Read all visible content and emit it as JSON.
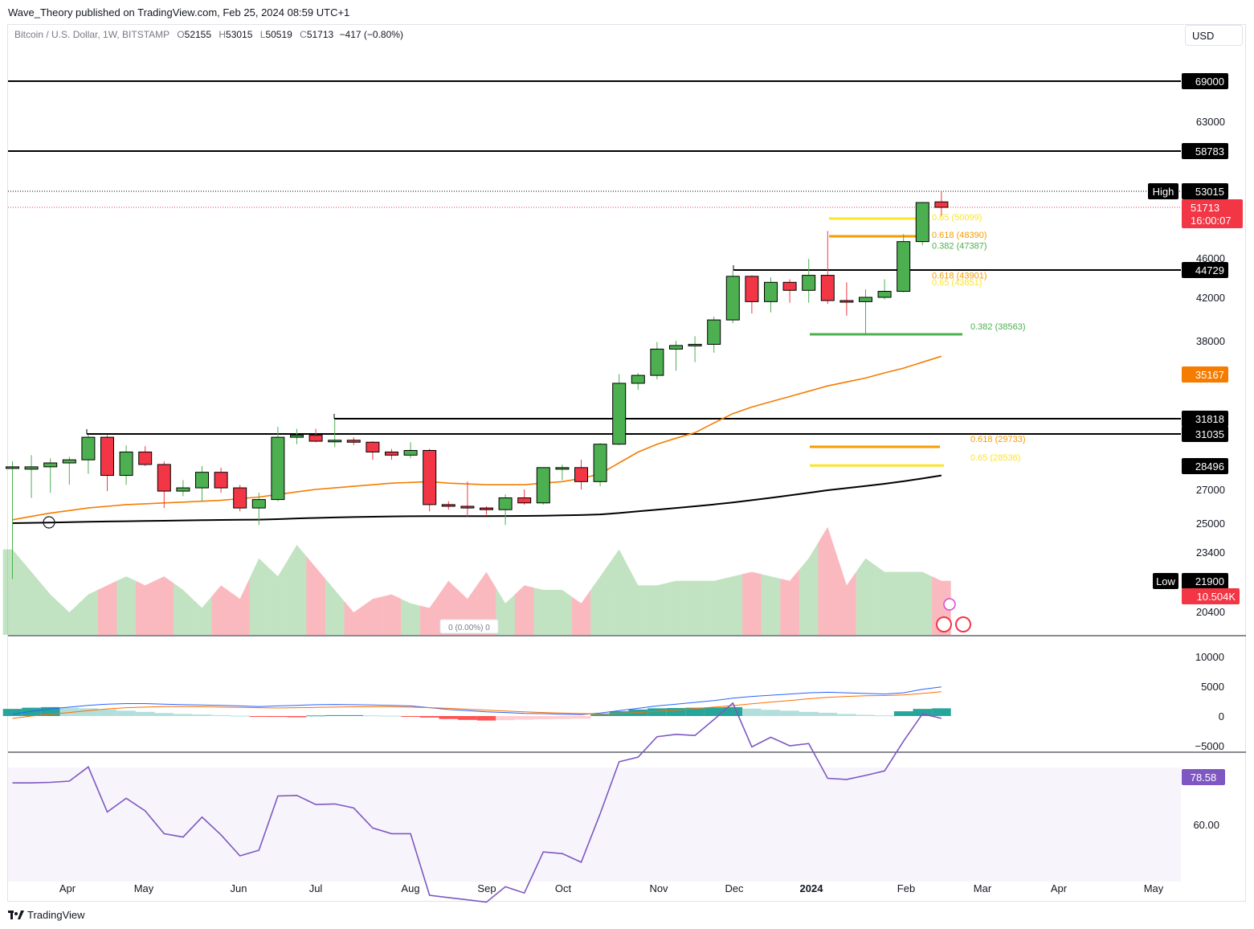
{
  "publisher": "Wave_Theory published on TradingView.com, Feb 25, 2024 08:59 UTC+1",
  "legend": {
    "symbol": "Bitcoin / U.S. Dollar, 1W, BITSTAMP",
    "open_label": "O",
    "open": "52155",
    "high_label": "H",
    "high": "53015",
    "low_label": "L",
    "low": "50519",
    "close_label": "C",
    "close": "51713",
    "change": "−417 (−0.80%)"
  },
  "currency": "USD",
  "footer": {
    "brand": "TradingView"
  },
  "colors": {
    "up": "#4caf50",
    "down": "#f23645",
    "ema50": "#f57c00",
    "ema200": "#000000",
    "macd": "#2962ff",
    "signal": "#ff6d00",
    "rsi": "#7e57c2",
    "fib_yellow": "#fbe42a",
    "fib_orange": "#f59d00",
    "fib_green": "#4caf50"
  },
  "chart_data": [
    {
      "type": "candlestick",
      "title": "Bitcoin / U.S. Dollar, 1W, BITSTAMP",
      "x_tick_labels": [
        "Apr",
        "May",
        "Jun",
        "Jul",
        "Aug",
        "Sep",
        "Oct",
        "Nov",
        "Dec",
        "2024",
        "Feb",
        "Mar",
        "Apr",
        "May"
      ],
      "y_tick_labels": [
        "63000",
        "46000",
        "42000",
        "38000",
        "27000",
        "25000",
        "23400",
        "20400"
      ],
      "y_tick_values": [
        63000,
        46000,
        42000,
        38000,
        27000,
        25000,
        23400,
        20400
      ],
      "candles": [
        {
          "o": 28450,
          "h": 28800,
          "l": 22000,
          "c": 28450
        },
        {
          "o": 28300,
          "h": 29200,
          "l": 26500,
          "c": 28450
        },
        {
          "o": 28450,
          "h": 29000,
          "l": 26800,
          "c": 28700
        },
        {
          "o": 28700,
          "h": 29100,
          "l": 27300,
          "c": 28900
        },
        {
          "o": 28900,
          "h": 31000,
          "l": 28000,
          "c": 30700
        },
        {
          "o": 30700,
          "h": 30900,
          "l": 26900,
          "c": 27900
        },
        {
          "o": 27900,
          "h": 29900,
          "l": 27300,
          "c": 29400
        },
        {
          "o": 29400,
          "h": 29800,
          "l": 28500,
          "c": 28600
        },
        {
          "o": 28600,
          "h": 28800,
          "l": 25900,
          "c": 26900
        },
        {
          "o": 26900,
          "h": 27600,
          "l": 26600,
          "c": 27100
        },
        {
          "o": 27100,
          "h": 28500,
          "l": 26300,
          "c": 28100
        },
        {
          "o": 28100,
          "h": 28400,
          "l": 26800,
          "c": 27100
        },
        {
          "o": 27100,
          "h": 27300,
          "l": 25700,
          "c": 25900
        },
        {
          "o": 25900,
          "h": 26800,
          "l": 24900,
          "c": 26400
        },
        {
          "o": 26400,
          "h": 31400,
          "l": 26300,
          "c": 30700
        },
        {
          "o": 30700,
          "h": 31300,
          "l": 30000,
          "c": 30900
        },
        {
          "o": 30900,
          "h": 31300,
          "l": 30200,
          "c": 30300
        },
        {
          "o": 30300,
          "h": 31800,
          "l": 29700,
          "c": 30400
        },
        {
          "o": 30400,
          "h": 30700,
          "l": 29900,
          "c": 30200
        },
        {
          "o": 30200,
          "h": 30300,
          "l": 28900,
          "c": 29400
        },
        {
          "o": 29400,
          "h": 29600,
          "l": 28900,
          "c": 29200
        },
        {
          "o": 29200,
          "h": 30200,
          "l": 29000,
          "c": 29500
        },
        {
          "o": 29500,
          "h": 29600,
          "l": 25700,
          "c": 26100
        },
        {
          "o": 26100,
          "h": 26300,
          "l": 25800,
          "c": 26000
        },
        {
          "o": 26000,
          "h": 27500,
          "l": 25400,
          "c": 25900
        },
        {
          "o": 25900,
          "h": 26000,
          "l": 25500,
          "c": 25800
        },
        {
          "o": 25800,
          "h": 26700,
          "l": 24900,
          "c": 26500
        },
        {
          "o": 26500,
          "h": 27000,
          "l": 26100,
          "c": 26200
        },
        {
          "o": 26200,
          "h": 28400,
          "l": 26100,
          "c": 28400
        },
        {
          "o": 28400,
          "h": 28600,
          "l": 27600,
          "c": 28400
        },
        {
          "o": 28400,
          "h": 28900,
          "l": 27000,
          "c": 27500
        },
        {
          "o": 27500,
          "h": 30100,
          "l": 27200,
          "c": 30000
        },
        {
          "o": 30000,
          "h": 35200,
          "l": 29900,
          "c": 34500
        },
        {
          "o": 34500,
          "h": 35300,
          "l": 34000,
          "c": 35100
        },
        {
          "o": 35100,
          "h": 37900,
          "l": 34800,
          "c": 37300
        },
        {
          "o": 37300,
          "h": 38000,
          "l": 35500,
          "c": 37600
        },
        {
          "o": 37600,
          "h": 38400,
          "l": 36200,
          "c": 37700
        },
        {
          "o": 37700,
          "h": 40200,
          "l": 37000,
          "c": 39900
        },
        {
          "o": 39900,
          "h": 44700,
          "l": 39600,
          "c": 44100
        },
        {
          "o": 44100,
          "h": 44200,
          "l": 40500,
          "c": 41600
        },
        {
          "o": 41600,
          "h": 44000,
          "l": 40600,
          "c": 43500
        },
        {
          "o": 43500,
          "h": 43800,
          "l": 41500,
          "c": 42700
        },
        {
          "o": 42700,
          "h": 45900,
          "l": 41500,
          "c": 44200
        },
        {
          "o": 44200,
          "h": 48900,
          "l": 41400,
          "c": 41700
        },
        {
          "o": 41700,
          "h": 43500,
          "l": 40300,
          "c": 41600
        },
        {
          "o": 41600,
          "h": 42800,
          "l": 38500,
          "c": 42000
        },
        {
          "o": 42000,
          "h": 43800,
          "l": 41800,
          "c": 42600
        },
        {
          "o": 42600,
          "h": 48600,
          "l": 42500,
          "c": 47800
        },
        {
          "o": 47800,
          "h": 52000,
          "l": 47400,
          "c": 52100
        },
        {
          "o": 52155,
          "h": 53015,
          "l": 50519,
          "c": 51713
        }
      ],
      "ema_50": [
        25200,
        25400,
        25600,
        25750,
        25900,
        26000,
        26100,
        26150,
        26200,
        26250,
        26300,
        26350,
        26450,
        26550,
        26700,
        26850,
        27000,
        27100,
        27200,
        27300,
        27400,
        27450,
        27500,
        27400,
        27350,
        27300,
        27300,
        27300,
        27400,
        27500,
        27700,
        28000,
        28700,
        29400,
        30000,
        30600,
        31100,
        31600,
        32200,
        32700,
        33100,
        33500,
        33900,
        34300,
        34600,
        34900,
        35300,
        35700,
        36200,
        36700
      ],
      "ema_200": [
        25000,
        25020,
        25040,
        25060,
        25080,
        25100,
        25115,
        25130,
        25145,
        25160,
        25175,
        25190,
        25200,
        25210,
        25240,
        25280,
        25310,
        25340,
        25360,
        25380,
        25400,
        25410,
        25420,
        25420,
        25420,
        25420,
        25425,
        25430,
        25440,
        25460,
        25480,
        25520,
        25600,
        25700,
        25800,
        25900,
        26000,
        26110,
        26230,
        26360,
        26500,
        26650,
        26800,
        26950,
        27080,
        27220,
        27360,
        27520,
        27700,
        27900
      ],
      "horizontal_levels": [
        "69000",
        "58783",
        "53015",
        "44729",
        "31818",
        "31035",
        "28496",
        "21900"
      ],
      "high_label": "High",
      "high_value": "53015",
      "low_label": "Low",
      "low_value": "21900",
      "last_price": "51713",
      "countdown": "16:00:07",
      "volume_label": "10.504K",
      "ema50_label": "35167",
      "fib_labels": [
        "0.65 (50099)",
        "0.618 (48390)",
        "0.382 (47387)",
        "0.618 (43901)",
        "0.65 (43851)",
        "0.382 (38563)",
        "0.618 (29733)",
        "0.65 (28536)"
      ],
      "fib_prices": [
        50099,
        48390,
        47387,
        43901,
        43851,
        38563,
        29733,
        28536
      ],
      "volume_relative": [
        0.95,
        0.7,
        0.45,
        0.25,
        0.45,
        0.55,
        0.65,
        0.55,
        0.65,
        0.5,
        0.3,
        0.55,
        0.4,
        0.85,
        0.65,
        1.0,
        0.75,
        0.5,
        0.25,
        0.4,
        0.45,
        0.35,
        0.3,
        0.6,
        0.4,
        0.7,
        0.35,
        0.55,
        0.5,
        0.5,
        0.35,
        0.65,
        0.95,
        0.55,
        0.55,
        0.6,
        0.6,
        0.6,
        0.65,
        0.7,
        0.65,
        0.6,
        0.85,
        1.2,
        0.55,
        0.85,
        0.7,
        0.7,
        0.7,
        0.6
      ],
      "volume_hint": "0 (0.00%) 0"
    },
    {
      "type": "line",
      "title": "MACD",
      "y_tick_labels": [
        "10000",
        "5000",
        "0",
        "−5000"
      ],
      "y_tick_values": [
        10000,
        5000,
        0,
        -5000
      ],
      "series": [
        {
          "name": "MACD",
          "values": [
            300,
            800,
            1200,
            1500,
            1800,
            2000,
            2100,
            2100,
            2000,
            1900,
            1850,
            1800,
            1700,
            1600,
            1700,
            1800,
            1900,
            1950,
            1900,
            1850,
            1800,
            1700,
            1400,
            1100,
            900,
            700,
            600,
            450,
            400,
            300,
            250,
            500,
            900,
            1300,
            1700,
            2000,
            2300,
            2600,
            3000,
            3300,
            3500,
            3700,
            3900,
            4000,
            3900,
            3800,
            3700,
            3900,
            4500,
            4900
          ]
        },
        {
          "name": "Signal",
          "values": [
            -400,
            0,
            300,
            600,
            900,
            1200,
            1400,
            1500,
            1600,
            1600,
            1550,
            1500,
            1450,
            1400,
            1350,
            1400,
            1450,
            1500,
            1550,
            1550,
            1550,
            1500,
            1400,
            1300,
            1150,
            1000,
            850,
            700,
            600,
            500,
            400,
            350,
            450,
            600,
            800,
            1000,
            1250,
            1500,
            1750,
            2050,
            2350,
            2600,
            2900,
            3150,
            3300,
            3400,
            3450,
            3550,
            3800,
            4100
          ]
        },
        {
          "name": "Histogram",
          "values": [
            1200,
            1400,
            1500,
            1400,
            1300,
            1100,
            900,
            700,
            500,
            350,
            250,
            150,
            50,
            -50,
            -150,
            -200,
            100,
            150,
            150,
            100,
            50,
            -100,
            -250,
            -500,
            -650,
            -750,
            -700,
            -600,
            -550,
            -500,
            -450,
            300,
            800,
            1100,
            1300,
            1350,
            1400,
            1450,
            1500,
            1250,
            1050,
            900,
            700,
            550,
            350,
            200,
            100,
            800,
            1200,
            1300
          ]
        }
      ]
    },
    {
      "type": "line",
      "title": "RSI",
      "y_tick_labels": [
        "60.00"
      ],
      "y_tick_values": [
        60
      ],
      "current_label": "78.58",
      "series": [
        {
          "name": "RSI",
          "values": [
            67.3,
            67.3,
            67.4,
            67.6,
            70.1,
            62.2,
            64.6,
            62.4,
            58.4,
            57.8,
            61.3,
            58.2,
            54.5,
            55.5,
            65.0,
            65.1,
            63.5,
            63.6,
            62.9,
            59.4,
            58.4,
            58.4,
            47.6,
            47.2,
            46.8,
            46.4,
            49.1,
            48.0,
            55.2,
            54.9,
            53.4,
            61.9,
            71.0,
            71.8,
            75.4,
            75.8,
            75.6,
            78.4,
            81.3,
            73.6,
            75.3,
            73.8,
            74.2,
            68.1,
            67.9,
            68.6,
            69.4,
            74.6,
            79.4,
            78.6
          ]
        }
      ]
    }
  ]
}
